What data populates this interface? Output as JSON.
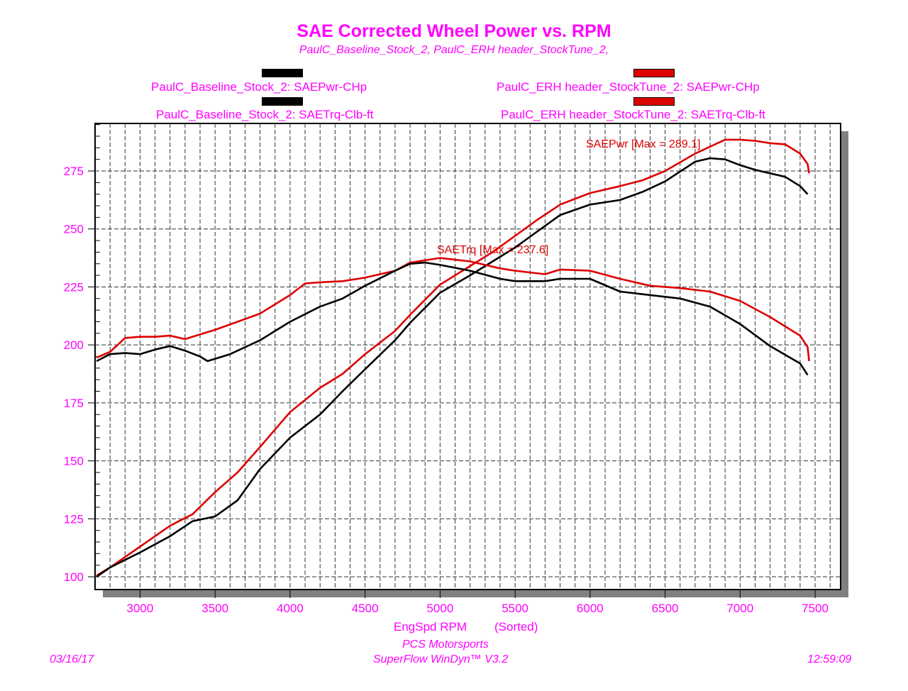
{
  "chart_data": {
    "type": "line",
    "title": "SAE Corrected Wheel Power vs. RPM",
    "subtitle": "PaulC_Baseline_Stock_2, PaulC_ERH header_StockTune_2,",
    "xlabel": "EngSpd RPM",
    "xlabel_note": "(Sorted)",
    "xlim": [
      2700,
      7670
    ],
    "ylim": [
      94.5,
      295.5
    ],
    "xticks": [
      3000,
      3500,
      4000,
      4500,
      5000,
      5500,
      6000,
      6500,
      7000,
      7500
    ],
    "yticks": [
      100,
      125,
      150,
      175,
      200,
      225,
      250,
      275
    ],
    "grid": true,
    "legend_position": "top",
    "legend": [
      {
        "label": "PaulC_Baseline_Stock_2: SAEPwr-CHp",
        "color": "#000000"
      },
      {
        "label": "PaulC_ERH header_StockTune_2: SAEPwr-CHp",
        "color": "#dd0000"
      },
      {
        "label": "PaulC_Baseline_Stock_2: SAETrq-Clb-ft",
        "color": "#000000"
      },
      {
        "label": "PaulC_ERH header_StockTune_2: SAETrq-Clb-ft",
        "color": "#dd0000"
      }
    ],
    "annotations": [
      {
        "text": "SAEPwr [Max = 289.1]",
        "series": "erh_power"
      },
      {
        "text": "SAETrq [Max = 237.6]",
        "series": "erh_torque"
      }
    ],
    "series": [
      {
        "id": "erh_power",
        "name": "PaulC_ERH header_StockTune_2: SAEPwr-CHp",
        "color": "#dd0000",
        "x": [
          2710,
          2800,
          3000,
          3200,
          3350,
          3500,
          3650,
          3800,
          4000,
          4200,
          4350,
          4500,
          4700,
          4800,
          5000,
          5200,
          5350,
          5500,
          5650,
          5800,
          6000,
          6200,
          6350,
          6500,
          6700,
          6900,
          7000,
          7100,
          7200,
          7300,
          7400,
          7450,
          7460
        ],
        "y": [
          100.5,
          104,
          113,
          122,
          127,
          136.5,
          145,
          156,
          171,
          181.5,
          187.5,
          196,
          206,
          213,
          226,
          234,
          240,
          247,
          254,
          260.5,
          265.5,
          268.5,
          271,
          275,
          282.5,
          288.5,
          288.5,
          288,
          287,
          286.5,
          282.5,
          278,
          274
        ]
      },
      {
        "id": "base_power",
        "name": "PaulC_Baseline_Stock_2: SAEPwr-CHp",
        "color": "#000000",
        "x": [
          2710,
          2800,
          3000,
          3200,
          3350,
          3500,
          3650,
          3800,
          4000,
          4200,
          4350,
          4500,
          4700,
          4800,
          5000,
          5200,
          5350,
          5500,
          5650,
          5800,
          6000,
          6200,
          6350,
          6500,
          6700,
          6800,
          6900,
          7000,
          7100,
          7200,
          7300,
          7400,
          7450
        ],
        "y": [
          100,
          104,
          110.5,
          117.5,
          124,
          126,
          133,
          146.5,
          160,
          170,
          180,
          189.5,
          202,
          209.5,
          222.5,
          230,
          236,
          242,
          249,
          256,
          260.5,
          262.5,
          266,
          270.5,
          279,
          280.5,
          280,
          277.5,
          275.5,
          274,
          272.5,
          268.5,
          265
        ]
      },
      {
        "id": "erh_torque",
        "name": "PaulC_ERH header_StockTune_2: SAETrq-Clb-ft",
        "color": "#dd0000",
        "x": [
          2710,
          2800,
          2900,
          3000,
          3100,
          3200,
          3300,
          3400,
          3500,
          3650,
          3800,
          4000,
          4100,
          4200,
          4350,
          4500,
          4700,
          4800,
          5000,
          5200,
          5400,
          5500,
          5700,
          5800,
          6000,
          6200,
          6400,
          6600,
          6800,
          7000,
          7200,
          7400,
          7450,
          7460
        ],
        "y": [
          194.5,
          197,
          203,
          203.5,
          203.5,
          204,
          202.5,
          204.5,
          206.5,
          210,
          213.5,
          221.5,
          226.5,
          227,
          227.5,
          229,
          232,
          235.5,
          237.5,
          236,
          233,
          232,
          230.5,
          232.5,
          232,
          228.5,
          225.5,
          224.5,
          223,
          219,
          212,
          204,
          199,
          193
        ]
      },
      {
        "id": "base_torque",
        "name": "PaulC_Baseline_Stock_2: SAETrq-Clb-ft",
        "color": "#000000",
        "x": [
          2710,
          2800,
          2900,
          3000,
          3100,
          3200,
          3300,
          3400,
          3450,
          3600,
          3800,
          4000,
          4200,
          4350,
          4500,
          4700,
          4800,
          4900,
          5000,
          5200,
          5400,
          5500,
          5700,
          5800,
          6000,
          6200,
          6400,
          6600,
          6800,
          7000,
          7200,
          7400,
          7450
        ],
        "y": [
          193,
          196,
          196.5,
          196,
          198,
          199.5,
          197.5,
          195,
          193,
          196,
          202,
          210,
          216.5,
          220,
          225.5,
          232,
          235,
          235.5,
          234.5,
          232,
          228.5,
          227.5,
          227.5,
          228.5,
          228.5,
          223,
          221.5,
          220,
          216.5,
          209,
          199.5,
          192,
          187
        ]
      }
    ]
  },
  "footer": {
    "date": "03/16/17",
    "company": "PCS Motorsports",
    "software": "SuperFlow WinDyn™ V3.2",
    "time": "12:59:09"
  }
}
